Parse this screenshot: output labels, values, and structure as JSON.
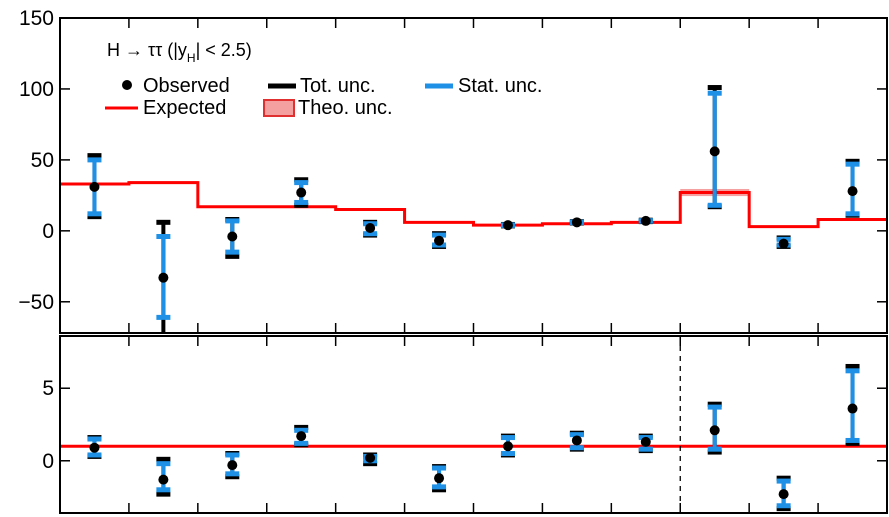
{
  "chart_data": [
    {
      "type": "scatter",
      "panel": "upper",
      "ylim": [
        -72,
        150
      ],
      "yticks": [
        -50,
        0,
        50,
        100,
        150
      ],
      "ytick_labels": [
        "−50",
        "0",
        "50",
        "100",
        "150"
      ],
      "legend": {
        "title_main": "H → ττ (|y",
        "title_sub": "H",
        "title_end": "| < 2.5)",
        "placement": "top-left",
        "entries": {
          "observed": "Observed",
          "tot": "Tot. unc.",
          "stat": "Stat. unc.",
          "expected": "Expected",
          "theo": "Theo. unc."
        }
      },
      "bin_edges": [
        0,
        1,
        2,
        3,
        4,
        5,
        6,
        7,
        8,
        9,
        10,
        11,
        12
      ],
      "expected": [
        33,
        34,
        17,
        17,
        15,
        6,
        4,
        5,
        6,
        27,
        3,
        8
      ],
      "theo_unc": [
        1,
        1,
        0.5,
        0.5,
        0.5,
        0.3,
        0.2,
        0.3,
        0.3,
        2.5,
        0.3,
        0.5
      ],
      "observed": [
        31,
        -33,
        -4,
        27,
        2,
        -7,
        4,
        6,
        7,
        56,
        -9,
        28
      ],
      "tot_unc": [
        [
          10,
          53
        ],
        [
          -76,
          6
        ],
        [
          -18,
          8
        ],
        [
          18,
          36
        ],
        [
          -3,
          6
        ],
        [
          -11,
          -2
        ],
        [
          3.5,
          4.5
        ],
        [
          5.5,
          6.5
        ],
        [
          6.5,
          7.5
        ],
        [
          17,
          101
        ],
        [
          -11,
          -5
        ],
        [
          11,
          49
        ]
      ],
      "stat_unc": [
        [
          12,
          50
        ],
        [
          -61,
          -4
        ],
        [
          -15,
          7
        ],
        [
          20,
          34
        ],
        [
          -2,
          5
        ],
        [
          -10,
          -3
        ],
        [
          3.8,
          4.2
        ],
        [
          5.8,
          6.2
        ],
        [
          6.8,
          7.2
        ],
        [
          18,
          97
        ],
        [
          -10,
          -6
        ],
        [
          12,
          47
        ]
      ]
    },
    {
      "type": "scatter",
      "panel": "lower",
      "ylim": [
        -3.6,
        8.6
      ],
      "yticks": [
        0,
        5
      ],
      "ytick_labels": [
        "0",
        "5"
      ],
      "reference": 1,
      "observed": [
        0.9,
        -1.3,
        -0.3,
        1.7,
        0.2,
        -1.2,
        1.0,
        1.4,
        1.3,
        2.1,
        -2.3,
        3.6
      ],
      "tot_unc": [
        [
          0.3,
          1.6
        ],
        [
          -2.3,
          0.1
        ],
        [
          -1.1,
          0.5
        ],
        [
          1.1,
          2.3
        ],
        [
          -0.2,
          0.4
        ],
        [
          -2.0,
          -0.4
        ],
        [
          0.4,
          1.7
        ],
        [
          0.8,
          1.9
        ],
        [
          0.7,
          1.7
        ],
        [
          0.6,
          3.9
        ],
        [
          -3.3,
          -1.2
        ],
        [
          1.2,
          6.5
        ]
      ],
      "stat_unc": [
        [
          0.4,
          1.5
        ],
        [
          -2.0,
          -0.2
        ],
        [
          -0.9,
          0.4
        ],
        [
          1.2,
          2.1
        ],
        [
          0.0,
          0.3
        ],
        [
          -1.8,
          -0.5
        ],
        [
          0.5,
          1.6
        ],
        [
          0.9,
          1.8
        ],
        [
          0.8,
          1.6
        ],
        [
          0.8,
          3.7
        ],
        [
          -3.1,
          -1.4
        ],
        [
          1.4,
          6.2
        ]
      ]
    }
  ],
  "colors": {
    "expected": "#ff0000",
    "stat": "#1e90e6",
    "tot": "#000000",
    "observed": "#000000",
    "theo_fill": "#f5a0a0",
    "theo_edge": "#e03030"
  }
}
